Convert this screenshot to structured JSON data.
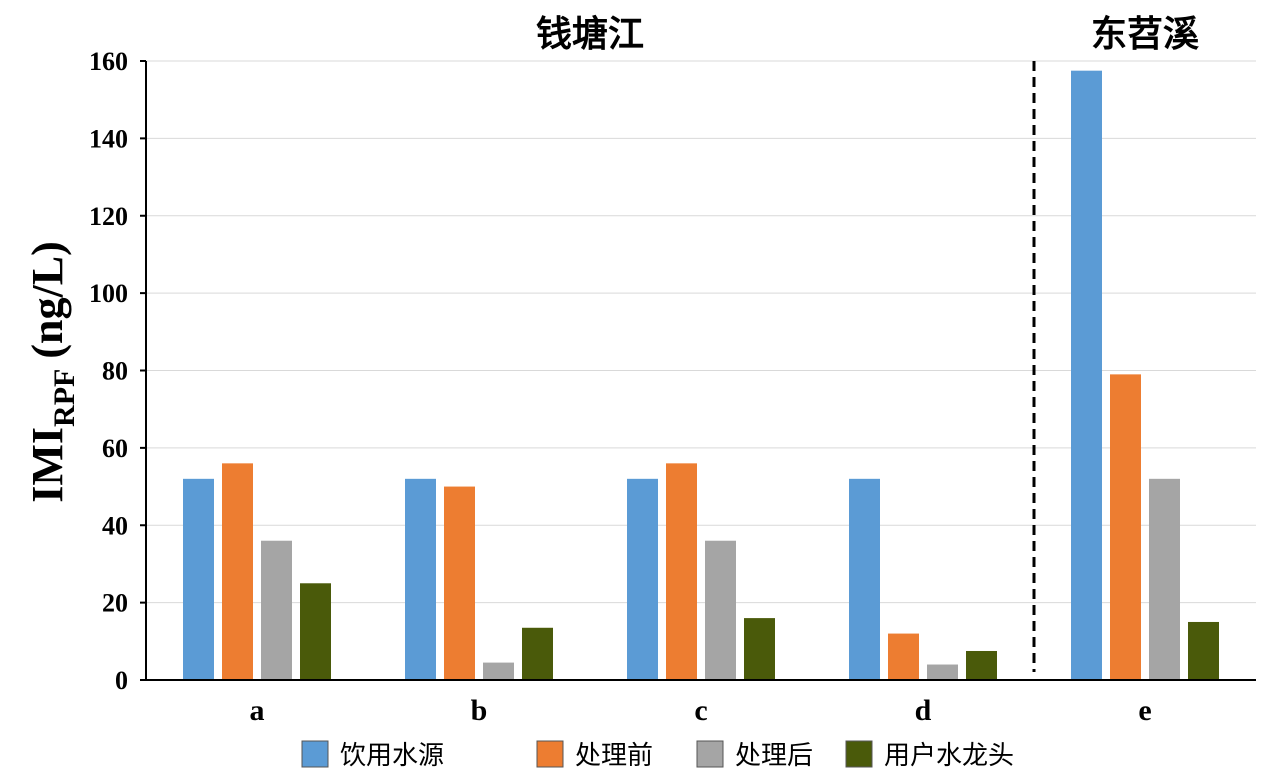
{
  "chart_data": {
    "type": "bar",
    "categories": [
      "a",
      "b",
      "c",
      "d",
      "e"
    ],
    "groups": [
      {
        "title": "钱塘江",
        "categories": [
          "a",
          "b",
          "c",
          "d"
        ]
      },
      {
        "title": "东苕溪",
        "categories": [
          "e"
        ]
      }
    ],
    "series": [
      {
        "name": "饮用水源",
        "color": "#5B9BD5",
        "values": [
          52,
          52,
          52,
          52,
          157.5
        ]
      },
      {
        "name": "处理前",
        "color": "#ED7D31",
        "values": [
          56,
          50,
          56,
          12,
          79
        ]
      },
      {
        "name": "处理后",
        "color": "#A5A5A5",
        "values": [
          36,
          4.5,
          36,
          4,
          52
        ]
      },
      {
        "name": "用户水龙头",
        "color": "#4A5A0A",
        "values": [
          25,
          13.5,
          16,
          7.5,
          15
        ]
      }
    ],
    "ylabel": "IMI",
    "ylabel_sub": "RPF",
    "ylabel_unit": "(ng/L)",
    "ylim": [
      0,
      160
    ],
    "yticks": [
      0,
      20,
      40,
      60,
      80,
      100,
      120,
      140,
      160
    ],
    "grid": true,
    "separator": "dashed line between d and e",
    "legend_position": "bottom"
  }
}
